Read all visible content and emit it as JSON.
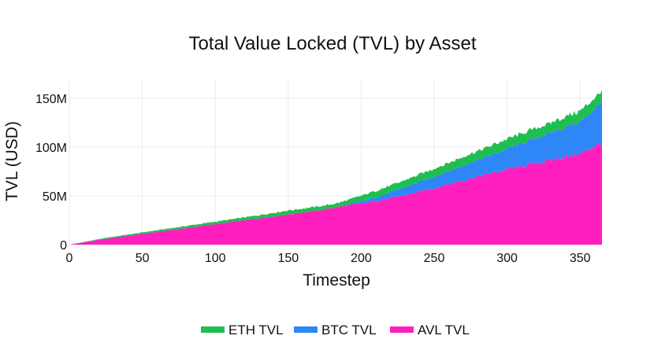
{
  "chart_data": {
    "type": "area",
    "title": "Total Value Locked (TVL) by Asset",
    "xlabel": "Timestep",
    "ylabel": "TVL (USD)",
    "xlim": [
      0,
      365
    ],
    "ylim": [
      0,
      170000000
    ],
    "x_ticks": [
      0,
      50,
      100,
      150,
      200,
      250,
      300,
      350
    ],
    "x_tick_labels": [
      "0",
      "50",
      "100",
      "150",
      "200",
      "250",
      "300",
      "350"
    ],
    "y_ticks": [
      0,
      50000000,
      100000000,
      150000000
    ],
    "y_tick_labels": [
      "0",
      "50M",
      "100M",
      "150M"
    ],
    "grid": true,
    "stacked": true,
    "legend_position": "bottom",
    "legend_order": [
      "ETH TVL",
      "BTC TVL",
      "AVL TVL"
    ],
    "x": [
      0,
      25,
      50,
      75,
      100,
      125,
      150,
      175,
      185,
      200,
      225,
      250,
      275,
      300,
      325,
      350,
      363,
      365
    ],
    "series": [
      {
        "name": "AVL TVL",
        "color": "#ff1fbe",
        "values": [
          0,
          6000000,
          11000000,
          16000000,
          21000000,
          26000000,
          31000000,
          36000000,
          39000000,
          42000000,
          49000000,
          58000000,
          68000000,
          77000000,
          85000000,
          93000000,
          103000000,
          104000000
        ]
      },
      {
        "name": "BTC TVL",
        "color": "#2f86f7",
        "values": [
          0,
          0,
          0,
          0,
          0,
          0,
          0,
          0,
          0,
          2000000,
          7000000,
          12000000,
          16000000,
          21000000,
          27000000,
          33000000,
          40000000,
          45000000
        ]
      },
      {
        "name": "ETH TVL",
        "color": "#1fbf4f",
        "values": [
          0,
          1000000,
          1500000,
          2000000,
          2500000,
          3000000,
          4000000,
          4000000,
          4000000,
          6000000,
          7000000,
          8000000,
          9000000,
          10000000,
          10000000,
          11000000,
          11000000,
          10000000
        ]
      }
    ]
  }
}
